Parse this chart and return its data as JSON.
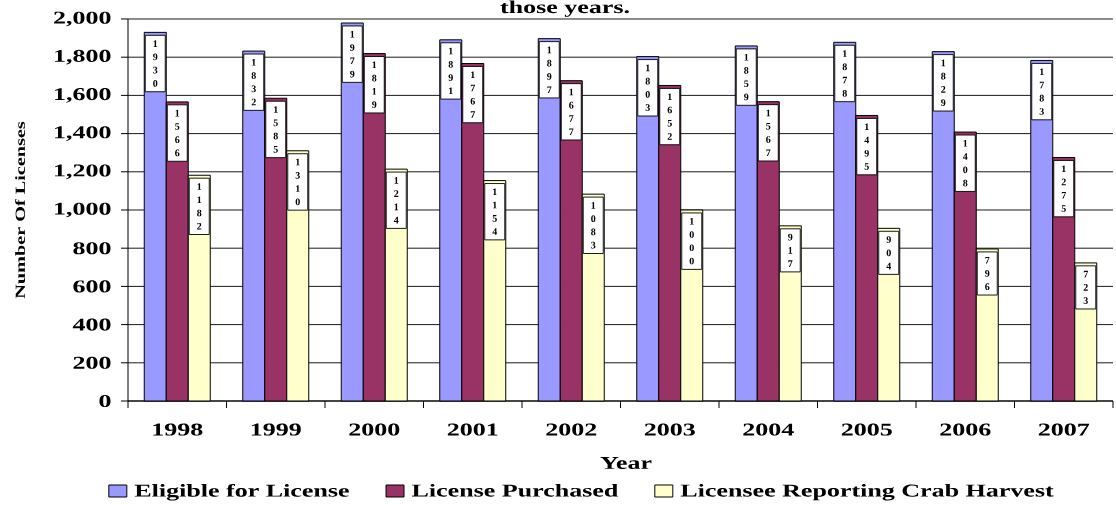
{
  "chart_data": {
    "type": "bar",
    "title": "those years.",
    "xlabel": "Year",
    "ylabel": "Number Of Licenses",
    "categories": [
      "1998",
      "1999",
      "2000",
      "2001",
      "2002",
      "2003",
      "2004",
      "2005",
      "2006",
      "2007"
    ],
    "series": [
      {
        "name": "Eligible for License",
        "color": "#9999ff",
        "values": [
          1930,
          1832,
          1979,
          1891,
          1897,
          1803,
          1859,
          1878,
          1829,
          1783
        ]
      },
      {
        "name": "License Purchased",
        "color": "#993366",
        "values": [
          1566,
          1585,
          1819,
          1767,
          1677,
          1652,
          1567,
          1495,
          1408,
          1275
        ]
      },
      {
        "name": "Licensee Reporting Crab Harvest",
        "color": "#ffffcc",
        "values": [
          1182,
          1310,
          1214,
          1154,
          1083,
          1000,
          917,
          904,
          796,
          723
        ]
      }
    ],
    "ylim": [
      0,
      2000
    ],
    "yticks": [
      0,
      200,
      400,
      600,
      800,
      {
        "value": 1000,
        "label": "1,000"
      },
      {
        "value": 1200,
        "label": "1,200"
      },
      {
        "value": 1400,
        "label": "1,400"
      },
      {
        "value": 1600,
        "label": "1,600"
      },
      {
        "value": 1800,
        "label": "1,800"
      },
      {
        "value": 2000,
        "label": "2,000"
      }
    ],
    "grid": "y",
    "legend": "bottom",
    "data_labels": true
  }
}
